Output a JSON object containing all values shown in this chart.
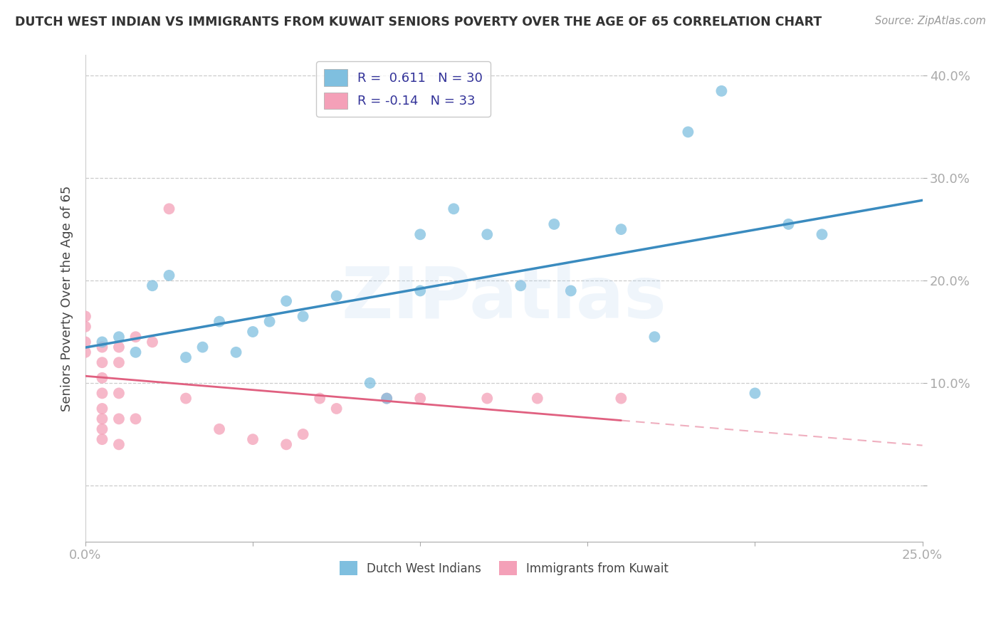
{
  "title": "DUTCH WEST INDIAN VS IMMIGRANTS FROM KUWAIT SENIORS POVERTY OVER THE AGE OF 65 CORRELATION CHART",
  "source": "Source: ZipAtlas.com",
  "ylabel": "Seniors Poverty Over the Age of 65",
  "xlim": [
    0.0,
    0.25
  ],
  "ylim": [
    -0.055,
    0.42
  ],
  "r1": 0.611,
  "n1": 30,
  "r2": -0.14,
  "n2": 33,
  "color1": "#7fbfdf",
  "color2": "#f4a0b8",
  "line1_color": "#3a8bbf",
  "line2_color": "#e06080",
  "watermark": "ZIPatlas",
  "legend_labels": [
    "Dutch West Indians",
    "Immigrants from Kuwait"
  ],
  "blue_points_x": [
    0.005,
    0.01,
    0.015,
    0.02,
    0.025,
    0.03,
    0.035,
    0.04,
    0.045,
    0.05,
    0.055,
    0.06,
    0.065,
    0.075,
    0.085,
    0.09,
    0.1,
    0.1,
    0.11,
    0.12,
    0.13,
    0.14,
    0.145,
    0.16,
    0.17,
    0.18,
    0.19,
    0.2,
    0.21,
    0.22
  ],
  "blue_points_y": [
    0.14,
    0.145,
    0.13,
    0.195,
    0.205,
    0.125,
    0.135,
    0.16,
    0.13,
    0.15,
    0.16,
    0.18,
    0.165,
    0.185,
    0.1,
    0.085,
    0.19,
    0.245,
    0.27,
    0.245,
    0.195,
    0.255,
    0.19,
    0.25,
    0.145,
    0.345,
    0.385,
    0.09,
    0.255,
    0.245
  ],
  "pink_points_x": [
    0.0,
    0.0,
    0.0,
    0.0,
    0.005,
    0.005,
    0.005,
    0.005,
    0.005,
    0.005,
    0.005,
    0.005,
    0.01,
    0.01,
    0.01,
    0.01,
    0.01,
    0.015,
    0.015,
    0.02,
    0.025,
    0.03,
    0.04,
    0.05,
    0.06,
    0.065,
    0.07,
    0.075,
    0.09,
    0.1,
    0.12,
    0.135,
    0.16
  ],
  "pink_points_y": [
    0.13,
    0.14,
    0.155,
    0.165,
    0.045,
    0.055,
    0.065,
    0.075,
    0.09,
    0.105,
    0.12,
    0.135,
    0.04,
    0.065,
    0.09,
    0.12,
    0.135,
    0.065,
    0.145,
    0.14,
    0.27,
    0.085,
    0.055,
    0.045,
    0.04,
    0.05,
    0.085,
    0.075,
    0.085,
    0.085,
    0.085,
    0.085,
    0.085
  ]
}
